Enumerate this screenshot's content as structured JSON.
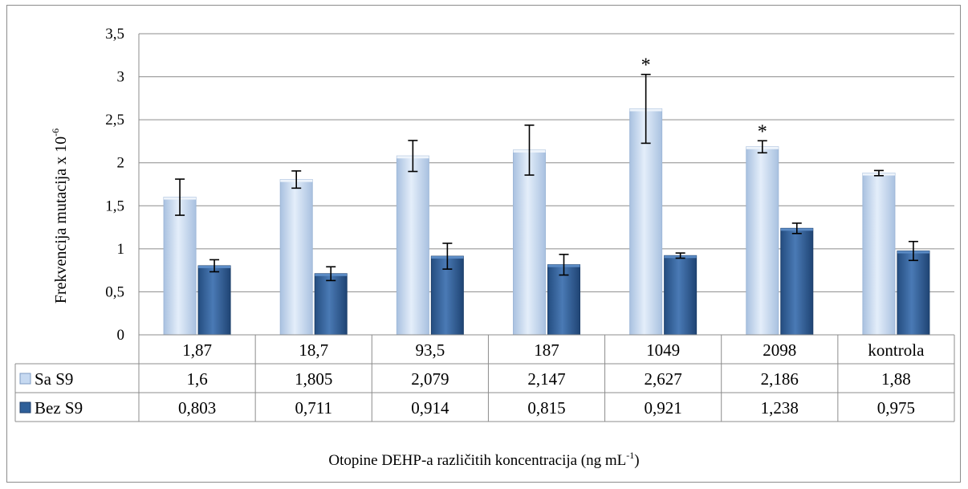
{
  "chart_data": {
    "type": "bar",
    "categories": [
      "1,87",
      "18,7",
      "93,5",
      "187",
      "1049",
      "2098",
      "kontrola"
    ],
    "series": [
      {
        "name": "Sa S9",
        "values": [
          1.6,
          1.805,
          2.079,
          2.147,
          2.627,
          2.186,
          1.88
        ],
        "labels": [
          "1,6",
          "1,805",
          "2,079",
          "2,147",
          "2,627",
          "2,186",
          "1,88"
        ],
        "error": [
          0.21,
          0.1,
          0.18,
          0.29,
          0.4,
          0.07,
          0.03
        ],
        "color": "#c6d9f1"
      },
      {
        "name": "Bez S9",
        "values": [
          0.803,
          0.711,
          0.914,
          0.815,
          0.921,
          1.238,
          0.975
        ],
        "labels": [
          "0,803",
          "0,711",
          "0,914",
          "0,815",
          "0,921",
          "1,238",
          "0,975"
        ],
        "error": [
          0.07,
          0.08,
          0.15,
          0.12,
          0.03,
          0.06,
          0.11
        ],
        "color": "#2e5f99"
      }
    ],
    "significance": [
      {
        "category": "1049",
        "series": "Sa S9",
        "mark": "*"
      },
      {
        "category": "2098",
        "series": "Sa S9",
        "mark": "*"
      }
    ],
    "ylim": [
      0,
      3.5
    ],
    "yticks": [
      0,
      0.5,
      1,
      1.5,
      2,
      2.5,
      3,
      3.5
    ],
    "ytick_labels": [
      "0",
      "0,5",
      "1",
      "1,5",
      "2",
      "2,5",
      "3",
      "3,5"
    ],
    "ylabel": "Frekvencija mutacija x 10",
    "ylabel_sup": "-6",
    "xlabel": "Otopine DEHP-a različitih koncentracija (ng mL",
    "xlabel_sup": "-1",
    "xlabel_end": ")",
    "grid": true,
    "data_table": true
  }
}
